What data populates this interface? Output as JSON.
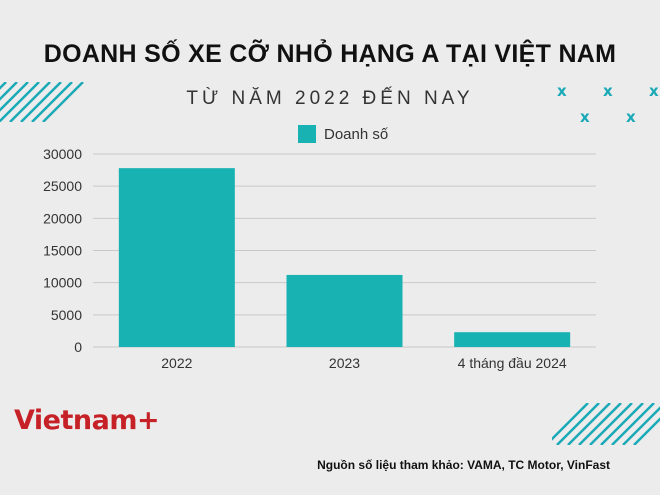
{
  "colors": {
    "bar": "#19b2b2",
    "accent": "#1aa9b7",
    "brand": "#c62127",
    "grid": "#c9c9c9"
  },
  "decor": {
    "x_mark": "x"
  },
  "brand": {
    "name": "Vietnam+"
  },
  "source": {
    "text": "Nguồn số liệu tham khảo: VAMA, TC Motor, VinFast"
  },
  "chart_data": {
    "type": "bar",
    "title": "DOANH SỐ XE CỠ NHỎ HẠNG A TẠI VIỆT NAM",
    "subtitle": "TỪ NĂM 2022 ĐẾN NAY",
    "categories": [
      "2022",
      "2023",
      "4 tháng đầu 2024"
    ],
    "series": [
      {
        "name": "Doanh số",
        "values": [
          27800,
          11200,
          2300
        ]
      }
    ],
    "legend_position": "top",
    "xlabel": "",
    "ylabel": "",
    "ylim": [
      0,
      30000
    ],
    "yticks": [
      0,
      5000,
      10000,
      15000,
      20000,
      25000,
      30000
    ],
    "grid": true
  }
}
